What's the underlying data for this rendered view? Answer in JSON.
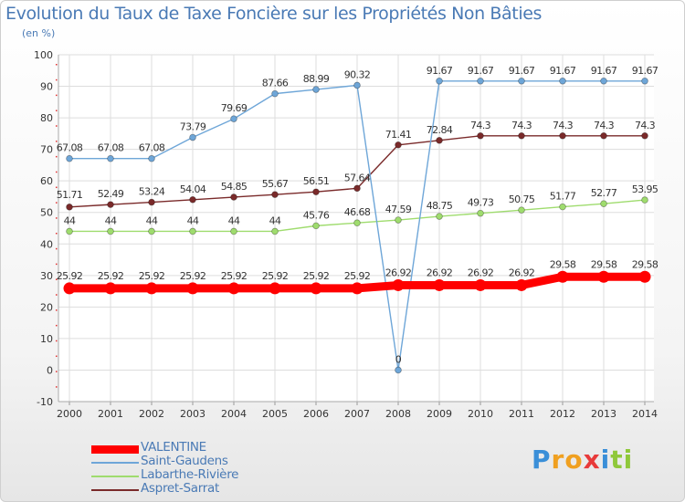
{
  "chart_data": {
    "type": "line",
    "title": "Evolution du Taux de Taxe Foncière sur les Propriétés Non Bâties",
    "ylabel": "(en %)",
    "xlabel": "",
    "ylim": [
      -10,
      100
    ],
    "yticks": [
      -10,
      0,
      10,
      20,
      30,
      40,
      50,
      60,
      70,
      80,
      90,
      100
    ],
    "categories": [
      "2000",
      "2001",
      "2002",
      "2003",
      "2004",
      "2005",
      "2006",
      "2007",
      "2008",
      "2009",
      "2010",
      "2011",
      "2012",
      "2013",
      "2014"
    ],
    "grid": true,
    "legend_position": "bottom-left",
    "series": [
      {
        "name": "VALENTINE",
        "color": "#ff0000",
        "values": [
          25.92,
          25.92,
          25.92,
          25.92,
          25.92,
          25.92,
          25.92,
          25.92,
          26.92,
          26.92,
          26.92,
          26.92,
          29.58,
          29.58,
          29.58
        ],
        "labels": [
          "25.92",
          "25.92",
          "25.92",
          "25.92",
          "25.92",
          "25.92",
          "25.92",
          "25.92",
          "26.92",
          "26.92",
          "26.92",
          "26.92",
          "29.58",
          "29.58",
          "29.58"
        ]
      },
      {
        "name": "Saint-Gaudens",
        "color": "#6ea6d8",
        "values": [
          67.08,
          67.08,
          67.08,
          73.79,
          79.69,
          87.66,
          88.99,
          90.32,
          0,
          91.67,
          91.67,
          91.67,
          91.67,
          91.67,
          91.67
        ],
        "labels": [
          "67.08",
          "67.08",
          "67.08",
          "73.79",
          "79.69",
          "87.66",
          "88.99",
          "90.32",
          "0",
          "91.67",
          "91.67",
          "91.67",
          "91.67",
          "91.67",
          "91.67"
        ]
      },
      {
        "name": "Labarthe-Rivière",
        "color": "#9fdc6e",
        "values": [
          44,
          44,
          44,
          44,
          44,
          44,
          45.76,
          46.68,
          47.59,
          48.75,
          49.73,
          50.75,
          51.77,
          52.77,
          53.95
        ],
        "labels": [
          "44",
          "44",
          "44",
          "44",
          "44",
          "44",
          "45.76",
          "46.68",
          "47.59",
          "48.75",
          "49.73",
          "50.75",
          "51.77",
          "52.77",
          "53.95"
        ]
      },
      {
        "name": "Aspret-Sarrat",
        "color": "#7a2a2a",
        "values": [
          51.71,
          52.49,
          53.24,
          54.04,
          54.85,
          55.67,
          56.51,
          57.64,
          71.41,
          72.84,
          74.3,
          74.3,
          74.3,
          74.3,
          74.3
        ],
        "labels": [
          "51.71",
          "52.49",
          "53.24",
          "54.04",
          "54.85",
          "55.67",
          "56.51",
          "57.64",
          "71.41",
          "72.84",
          "74.3",
          "74.3",
          "74.3",
          "74.3",
          "74.3"
        ]
      }
    ]
  },
  "logo": {
    "letters": [
      "P",
      "r",
      "o",
      "x",
      "i",
      "t",
      "i"
    ],
    "colors": [
      "#3a8fd8",
      "#f0a020",
      "#f0a020",
      "#e83a3a",
      "#3a8fd8",
      "#8fc83a",
      "#8fc83a"
    ]
  }
}
